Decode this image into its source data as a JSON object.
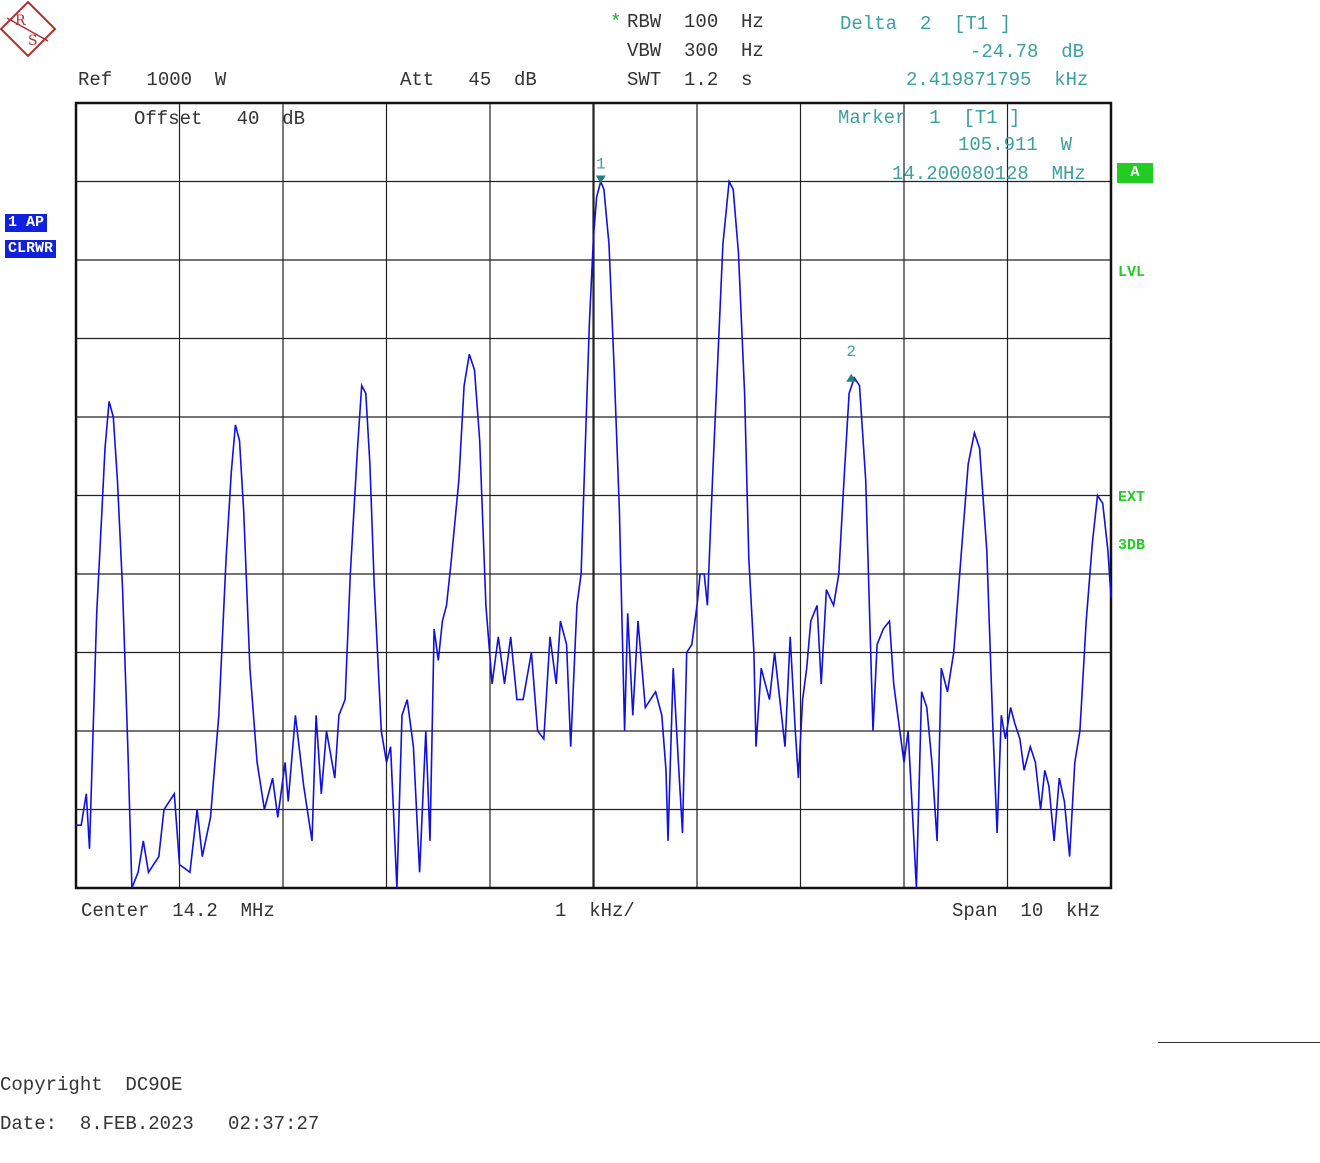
{
  "header": {
    "rbw_star": "*",
    "rbw": "RBW  100  Hz",
    "vbw": "VBW  300  Hz",
    "swt": "SWT  1.2  s",
    "ref": "Ref   1000  W",
    "att": "Att   45  dB",
    "offset": "Offset   40  dB"
  },
  "delta_marker": {
    "title": "Delta  2  [T1 ]",
    "level": "-24.78  dB",
    "freq": "2.419871795  kHz"
  },
  "marker1": {
    "title": "Marker  1  [T1 ]",
    "level": "105.911  W",
    "freq": "14.200080128  MHz",
    "label": "1"
  },
  "marker2": {
    "label": "2"
  },
  "side_labels": {
    "trace_mode": "1 AP",
    "clear_write": "CLRWR",
    "a": "A",
    "lvl": "LVL",
    "ext": "EXT",
    "threedb": "3DB"
  },
  "footer": {
    "center": "Center  14.2  MHz",
    "div": "1  kHz/",
    "span": "Span  10  kHz",
    "copyright": "Copyright  DC9OE",
    "date": "Date:  8.FEB.2023   02:37:27"
  },
  "colors": {
    "trace": "#1010e0",
    "marker": "#208080",
    "annotation": "#3aa0a0",
    "status": "#22cc22"
  },
  "logo": "rohde-schwarz-logo",
  "chart_data": {
    "type": "line",
    "title": "",
    "xlabel": "",
    "ylabel": "",
    "x_unit": "kHz offset from center",
    "xlim": [
      -5,
      5
    ],
    "ylim": [
      0,
      10
    ],
    "grid": true,
    "grid_divisions": {
      "x": 10,
      "y": 10
    },
    "series": [
      {
        "values": [
          [
            -5.0,
            0.8
          ],
          [
            -4.95,
            0.8
          ],
          [
            -4.9,
            1.2
          ],
          [
            -4.87,
            0.5
          ],
          [
            -4.8,
            3.5
          ],
          [
            -4.75,
            4.8
          ],
          [
            -4.72,
            5.6
          ],
          [
            -4.68,
            6.2
          ],
          [
            -4.64,
            6.0
          ],
          [
            -4.6,
            5.2
          ],
          [
            -4.55,
            3.8
          ],
          [
            -4.5,
            1.8
          ],
          [
            -4.46,
            0.0
          ],
          [
            -4.4,
            0.2
          ],
          [
            -4.35,
            0.6
          ],
          [
            -4.3,
            0.2
          ],
          [
            -4.2,
            0.4
          ],
          [
            -4.15,
            1.0
          ],
          [
            -4.05,
            1.2
          ],
          [
            -4.0,
            0.3
          ],
          [
            -3.9,
            0.2
          ],
          [
            -3.83,
            1.0
          ],
          [
            -3.78,
            0.4
          ],
          [
            -3.7,
            0.9
          ],
          [
            -3.62,
            2.2
          ],
          [
            -3.55,
            4.2
          ],
          [
            -3.5,
            5.3
          ],
          [
            -3.46,
            5.9
          ],
          [
            -3.42,
            5.7
          ],
          [
            -3.38,
            4.8
          ],
          [
            -3.32,
            2.8
          ],
          [
            -3.25,
            1.6
          ],
          [
            -3.18,
            1.0
          ],
          [
            -3.1,
            1.4
          ],
          [
            -3.05,
            0.9
          ],
          [
            -2.98,
            1.6
          ],
          [
            -2.95,
            1.1
          ],
          [
            -2.88,
            2.2
          ],
          [
            -2.8,
            1.3
          ],
          [
            -2.72,
            0.6
          ],
          [
            -2.68,
            2.2
          ],
          [
            -2.63,
            1.2
          ],
          [
            -2.58,
            2.0
          ],
          [
            -2.5,
            1.4
          ],
          [
            -2.46,
            2.2
          ],
          [
            -2.4,
            2.4
          ],
          [
            -2.35,
            4.0
          ],
          [
            -2.28,
            5.6
          ],
          [
            -2.24,
            6.4
          ],
          [
            -2.2,
            6.3
          ],
          [
            -2.16,
            5.4
          ],
          [
            -2.12,
            3.9
          ],
          [
            -2.05,
            2.0
          ],
          [
            -2.0,
            1.6
          ],
          [
            -1.96,
            1.8
          ],
          [
            -1.9,
            0.0
          ],
          [
            -1.85,
            2.2
          ],
          [
            -1.8,
            2.4
          ],
          [
            -1.74,
            1.8
          ],
          [
            -1.68,
            0.2
          ],
          [
            -1.62,
            2.0
          ],
          [
            -1.58,
            0.6
          ],
          [
            -1.54,
            3.3
          ],
          [
            -1.5,
            2.9
          ],
          [
            -1.46,
            3.4
          ],
          [
            -1.42,
            3.6
          ],
          [
            -1.38,
            4.1
          ],
          [
            -1.3,
            5.2
          ],
          [
            -1.25,
            6.4
          ],
          [
            -1.2,
            6.8
          ],
          [
            -1.15,
            6.6
          ],
          [
            -1.1,
            5.7
          ],
          [
            -1.04,
            3.6
          ],
          [
            -0.98,
            2.6
          ],
          [
            -0.92,
            3.2
          ],
          [
            -0.86,
            2.6
          ],
          [
            -0.8,
            3.2
          ],
          [
            -0.74,
            2.4
          ],
          [
            -0.68,
            2.4
          ],
          [
            -0.6,
            3.0
          ],
          [
            -0.54,
            2.0
          ],
          [
            -0.48,
            1.9
          ],
          [
            -0.42,
            3.2
          ],
          [
            -0.36,
            2.6
          ],
          [
            -0.32,
            3.4
          ],
          [
            -0.26,
            3.1
          ],
          [
            -0.22,
            1.8
          ],
          [
            -0.16,
            3.6
          ],
          [
            -0.12,
            4.0
          ],
          [
            -0.08,
            5.6
          ],
          [
            -0.04,
            7.2
          ],
          [
            0.0,
            8.3
          ],
          [
            0.03,
            8.8
          ],
          [
            0.07,
            9.0
          ],
          [
            0.1,
            8.9
          ],
          [
            0.15,
            8.2
          ],
          [
            0.2,
            6.6
          ],
          [
            0.25,
            4.8
          ],
          [
            0.3,
            2.0
          ],
          [
            0.33,
            3.5
          ],
          [
            0.38,
            2.2
          ],
          [
            0.43,
            3.4
          ],
          [
            0.5,
            2.3
          ],
          [
            0.55,
            2.4
          ],
          [
            0.6,
            2.5
          ],
          [
            0.66,
            2.2
          ],
          [
            0.7,
            1.5
          ],
          [
            0.72,
            0.6
          ],
          [
            0.77,
            2.8
          ],
          [
            0.82,
            1.6
          ],
          [
            0.86,
            0.7
          ],
          [
            0.9,
            3.0
          ],
          [
            0.95,
            3.1
          ],
          [
            1.0,
            3.6
          ],
          [
            1.03,
            4.0
          ],
          [
            1.07,
            4.0
          ],
          [
            1.1,
            3.6
          ],
          [
            1.15,
            5.2
          ],
          [
            1.2,
            6.7
          ],
          [
            1.25,
            8.2
          ],
          [
            1.31,
            9.0
          ],
          [
            1.35,
            8.9
          ],
          [
            1.4,
            8.1
          ],
          [
            1.46,
            6.3
          ],
          [
            1.5,
            4.2
          ],
          [
            1.55,
            3.0
          ],
          [
            1.57,
            1.8
          ],
          [
            1.62,
            2.8
          ],
          [
            1.66,
            2.6
          ],
          [
            1.7,
            2.4
          ],
          [
            1.75,
            3.0
          ],
          [
            1.8,
            2.4
          ],
          [
            1.85,
            1.8
          ],
          [
            1.9,
            3.2
          ],
          [
            1.95,
            2.0
          ],
          [
            1.98,
            1.4
          ],
          [
            2.02,
            2.4
          ],
          [
            2.06,
            2.8
          ],
          [
            2.1,
            3.4
          ],
          [
            2.16,
            3.6
          ],
          [
            2.2,
            2.6
          ],
          [
            2.25,
            3.8
          ],
          [
            2.32,
            3.6
          ],
          [
            2.37,
            4.0
          ],
          [
            2.42,
            5.2
          ],
          [
            2.47,
            6.3
          ],
          [
            2.52,
            6.5
          ],
          [
            2.57,
            6.4
          ],
          [
            2.63,
            5.2
          ],
          [
            2.7,
            2.0
          ],
          [
            2.74,
            3.1
          ],
          [
            2.8,
            3.3
          ],
          [
            2.86,
            3.4
          ],
          [
            2.9,
            2.6
          ],
          [
            2.95,
            2.1
          ],
          [
            3.0,
            1.6
          ],
          [
            3.04,
            2.0
          ],
          [
            3.08,
            1.0
          ],
          [
            3.12,
            0.0
          ],
          [
            3.17,
            2.5
          ],
          [
            3.22,
            2.3
          ],
          [
            3.27,
            1.6
          ],
          [
            3.32,
            0.6
          ],
          [
            3.36,
            2.8
          ],
          [
            3.42,
            2.5
          ],
          [
            3.48,
            3.0
          ],
          [
            3.55,
            4.2
          ],
          [
            3.62,
            5.4
          ],
          [
            3.68,
            5.8
          ],
          [
            3.73,
            5.6
          ],
          [
            3.8,
            4.3
          ],
          [
            3.86,
            2.0
          ],
          [
            3.9,
            0.7
          ],
          [
            3.94,
            2.2
          ],
          [
            3.98,
            1.9
          ],
          [
            4.03,
            2.3
          ],
          [
            4.07,
            2.1
          ],
          [
            4.12,
            1.9
          ],
          [
            4.16,
            1.5
          ],
          [
            4.22,
            1.8
          ],
          [
            4.27,
            1.6
          ],
          [
            4.32,
            1.0
          ],
          [
            4.36,
            1.5
          ],
          [
            4.4,
            1.3
          ],
          [
            4.45,
            0.6
          ],
          [
            4.5,
            1.4
          ],
          [
            4.55,
            1.1
          ],
          [
            4.6,
            0.4
          ],
          [
            4.65,
            1.6
          ],
          [
            4.7,
            2.0
          ],
          [
            4.76,
            3.4
          ],
          [
            4.82,
            4.4
          ],
          [
            4.87,
            5.0
          ],
          [
            4.92,
            4.9
          ],
          [
            4.97,
            4.3
          ],
          [
            5.0,
            3.7
          ]
        ]
      }
    ],
    "markers": [
      {
        "label": "1",
        "x": 0.07,
        "y": 9.0,
        "style": "down-triangle"
      },
      {
        "label": "2",
        "x": 2.49,
        "y": 6.5,
        "style": "up-triangle"
      }
    ]
  }
}
